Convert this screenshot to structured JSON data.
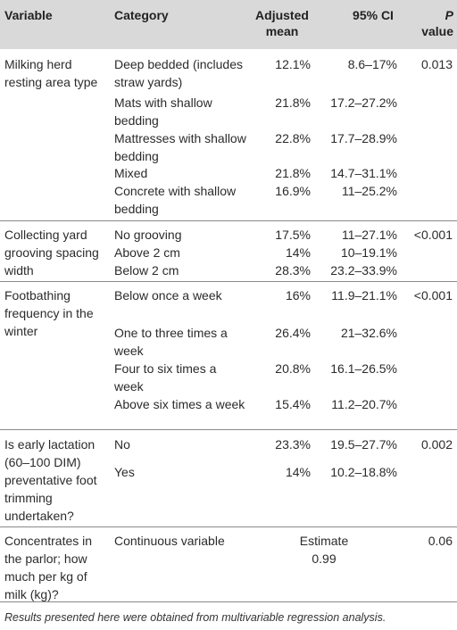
{
  "header": {
    "variable": "Variable",
    "category": "Category",
    "adjusted_mean": "Adjusted mean",
    "ci": "95% CI",
    "p_italic": "P",
    "p_rest": " value"
  },
  "rows": [
    {
      "variable": "Milking herd resting area type",
      "p_value": "0.013",
      "items": [
        {
          "category": "Deep bedded (includes straw yards)",
          "mean": "12.1%",
          "ci": "8.6–17%"
        },
        {
          "category": "Mats with shallow bedding",
          "mean": "21.8%",
          "ci": "17.2–27.2%"
        },
        {
          "category": "Mattresses with shallow bedding",
          "mean": "22.8%",
          "ci": "17.7–28.9%"
        },
        {
          "category": "Mixed",
          "mean": "21.8%",
          "ci": "14.7–31.1%"
        },
        {
          "category": "Concrete with shallow bedding",
          "mean": "16.9%",
          "ci": "11–25.2%"
        }
      ]
    },
    {
      "variable": "Collecting yard grooving spacing width",
      "p_value": "<0.001",
      "items": [
        {
          "category": "No grooving",
          "mean": "17.5%",
          "ci": "11–27.1%"
        },
        {
          "category": "Above 2 cm",
          "mean": "14%",
          "ci": "10–19.1%"
        },
        {
          "category": "Below 2 cm",
          "mean": "28.3%",
          "ci": "23.2–33.9%"
        }
      ]
    },
    {
      "variable": "Footbathing frequency in the winter",
      "p_value": "<0.001",
      "items": [
        {
          "category": "Below once a week",
          "mean": "16%",
          "ci": "11.9–21.1%"
        },
        {
          "category": "One to three times a week",
          "mean": "26.4%",
          "ci": "21–32.6%"
        },
        {
          "category": "Four to six times a week",
          "mean": "20.8%",
          "ci": "16.1–26.5%"
        },
        {
          "category": "Above six times a week",
          "mean": "15.4%",
          "ci": "11.2–20.7%"
        }
      ]
    },
    {
      "variable": "Is early lactation (60–100 DIM) preventative foot trimming undertaken?",
      "p_value": "0.002",
      "items": [
        {
          "category": "No",
          "mean": "23.3%",
          "ci": "19.5–27.7%"
        },
        {
          "category": "Yes",
          "mean": "14%",
          "ci": "10.2–18.8%"
        }
      ]
    },
    {
      "variable": "Concentrates in the parlor; how much per kg of milk (kg)?",
      "p_value": "0.06",
      "category": "Continuous variable",
      "estimate_label": "Estimate",
      "estimate_value": "0.99"
    }
  ],
  "footnote": "Results presented here were obtained from multivariable regression analysis."
}
